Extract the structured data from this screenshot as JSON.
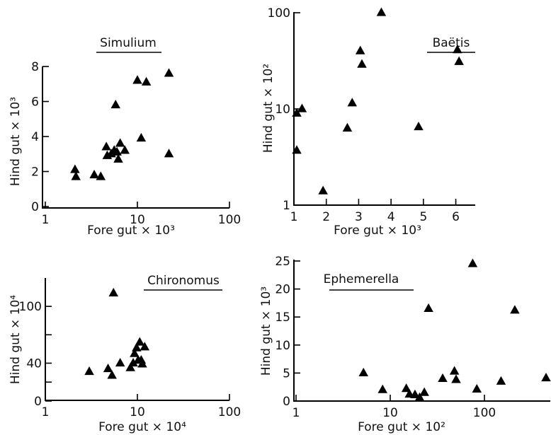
{
  "chart_data": [
    {
      "type": "scatter",
      "title": "Simulium",
      "xlabel": "Fore gut × 10³",
      "ylabel": "Hind gut × 10³",
      "xscale": "log",
      "yscale": "linear",
      "xlim": [
        1,
        100
      ],
      "ylim": [
        0,
        8
      ],
      "xticks": [
        "1",
        "10",
        "100"
      ],
      "yticks": [
        "0",
        "2",
        "4",
        "6",
        "8"
      ],
      "x": [
        2.1,
        2.15,
        3.4,
        4.0,
        4.6,
        4.7,
        5.2,
        5.6,
        5.8,
        6.0,
        6.2,
        6.5,
        7.3,
        10.0,
        11.0,
        12.5,
        22.0,
        22.0
      ],
      "y": [
        2.1,
        1.7,
        1.8,
        1.7,
        3.4,
        2.9,
        3.0,
        3.2,
        5.8,
        3.1,
        2.7,
        3.6,
        3.2,
        7.2,
        3.9,
        7.1,
        7.6,
        3.0
      ]
    },
    {
      "type": "scatter",
      "title": "Baëtis",
      "xlabel": "Fore  gut × 10³",
      "ylabel": "Hind gut × 10²",
      "xscale": "linear",
      "yscale": "log",
      "xlim": [
        1,
        6.6
      ],
      "ylim": [
        1,
        100
      ],
      "xticks": [
        "1",
        "2",
        "3",
        "4",
        "5",
        "6"
      ],
      "yticks": [
        "1",
        "10",
        "100"
      ],
      "x": [
        1.05,
        1.05,
        1.25,
        1.9,
        2.65,
        2.8,
        3.05,
        3.1,
        3.7,
        4.85,
        6.05,
        6.1
      ],
      "y": [
        9.0,
        3.7,
        10.0,
        1.4,
        6.3,
        11.5,
        40.0,
        29.0,
        100.0,
        6.5,
        41.0,
        31.0
      ]
    },
    {
      "type": "scatter",
      "title": "Chironomus",
      "xlabel": "Fore gut × 10⁴",
      "ylabel": "Hind gut × 10⁴",
      "xscale": "log",
      "yscale": "linear",
      "xlim": [
        1,
        100
      ],
      "ylim": [
        0,
        130
      ],
      "xticks": [
        "1",
        "10",
        "100"
      ],
      "yticks": [
        "0",
        "40",
        "100"
      ],
      "x": [
        3.0,
        4.8,
        5.3,
        5.5,
        6.5,
        8.4,
        9.0,
        9.3,
        9.8,
        10.2,
        10.6,
        11.0,
        11.3,
        12.0
      ],
      "y": [
        31,
        34,
        27,
        114,
        40,
        35,
        40,
        50,
        56,
        43,
        62,
        43,
        39,
        57
      ]
    },
    {
      "type": "scatter",
      "title": "Ephemerella",
      "xlabel": "Fore  gut × 10²",
      "ylabel": "Hind gut × 10³",
      "xscale": "log",
      "yscale": "linear",
      "xlim": [
        1,
        500
      ],
      "ylim": [
        0,
        25
      ],
      "xticks": [
        "1",
        "10",
        "100"
      ],
      "yticks": [
        "0",
        "5",
        "10",
        "15",
        "20",
        "25"
      ],
      "x": [
        5.2,
        8.3,
        14.8,
        16.0,
        18.3,
        20.5,
        23.0,
        25.5,
        36.0,
        48.0,
        50.0,
        75.0,
        83.0,
        150.0,
        210.0,
        480.0
      ],
      "y": [
        5.0,
        2.0,
        2.2,
        1.2,
        1.1,
        0.6,
        1.5,
        16.5,
        4.0,
        5.3,
        3.8,
        24.5,
        2.1,
        3.5,
        16.2,
        4.1
      ]
    }
  ]
}
